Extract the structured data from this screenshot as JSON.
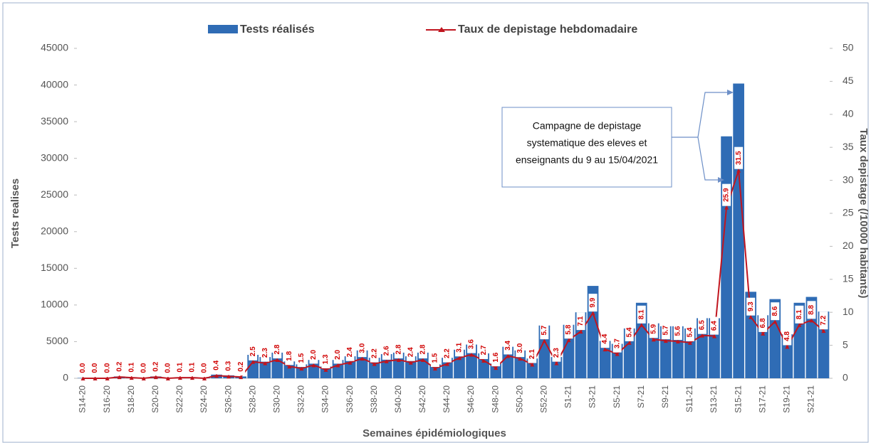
{
  "chart_data": {
    "type": "bar+line",
    "x_label": "Semaines épidémiologiques",
    "y_label": "Tests realises",
    "y2_label": "Taux depistage (/10000 habitants)",
    "annotation": [
      "Campagne de depistage",
      "systematique des eleves et",
      "enseignants du 9 au 15/04/2021"
    ],
    "categories": [
      "S14-20",
      null,
      "S16-20",
      null,
      "S18-20",
      null,
      "S20-20",
      null,
      "S22-20",
      null,
      "S24-20",
      null,
      "S26-20",
      null,
      "S28-20",
      null,
      "S30-20",
      null,
      "S32-20",
      null,
      "S34-20",
      null,
      "S36-20",
      null,
      "S38-20",
      null,
      "S40-20",
      null,
      "S42-20",
      null,
      "S44-20",
      null,
      "S46-20",
      null,
      "S48-20",
      null,
      "S50-20",
      null,
      "S52-20",
      null,
      "S1-21",
      null,
      "S3-21",
      null,
      "S5-21",
      null,
      "S7-21",
      null,
      "S9-21",
      null,
      "S11-21",
      null,
      "S13-21",
      null,
      "S15-21",
      null,
      "S17-21",
      null,
      "S19-21",
      null,
      "S21-21",
      null
    ],
    "series": [
      {
        "name": "Tests réalisés",
        "color": "#2f6cb5",
        "values": [
          50,
          50,
          60,
          250,
          150,
          60,
          250,
          60,
          150,
          150,
          60,
          500,
          400,
          250,
          3200,
          2900,
          3500,
          2300,
          1900,
          2500,
          1600,
          2500,
          3000,
          3800,
          2800,
          3300,
          3500,
          3000,
          3500,
          1900,
          2800,
          3900,
          4600,
          3400,
          2000,
          4300,
          3800,
          2700,
          7200,
          2900,
          7300,
          9000,
          12600,
          5100,
          4700,
          6800,
          10300,
          7500,
          7100,
          7100,
          6800,
          8200,
          8200,
          33000,
          40200,
          11800,
          8600,
          10800,
          6000,
          10300,
          11100,
          9100
        ]
      },
      {
        "name": "Taux de depistage hebdomadaire",
        "color": "#c0151f",
        "axis": "y2",
        "values": [
          0,
          0,
          0,
          0.2,
          0.1,
          0,
          0.2,
          0,
          0.1,
          0.1,
          0,
          0.4,
          0.3,
          0.2,
          2.5,
          2.3,
          2.8,
          1.8,
          1.5,
          2.0,
          1.3,
          2.0,
          2.4,
          3.0,
          2.2,
          2.6,
          2.8,
          2.4,
          2.8,
          1.5,
          2.2,
          3.1,
          3.6,
          2.7,
          1.6,
          3.4,
          3.0,
          2.1,
          5.7,
          2.3,
          5.8,
          7.1,
          9.9,
          4.4,
          3.7,
          5.4,
          8.1,
          5.9,
          5.7,
          5.6,
          5.4,
          6.5,
          6.4,
          25.9,
          31.5,
          9.3,
          6.8,
          8.6,
          4.8,
          8.1,
          8.8,
          7.2
        ],
        "value_labels": [
          "0.0",
          "0.0",
          "0.0",
          "0.2",
          "0.1",
          "0.0",
          "0.2",
          "0.0",
          "0.1",
          "0.1",
          "0.0",
          "0.4",
          "0.3",
          "0.2",
          "2.5",
          "2.3",
          "2.8",
          "1.8",
          "1.5",
          "2.0",
          "1.3",
          "2.0",
          "2.4",
          "3.0",
          "2.2",
          "2.6",
          "2.8",
          "2.4",
          "2.8",
          "1.5",
          "2.2",
          "3.1",
          "3.6",
          "2.7",
          "1.6",
          "3.4",
          "3.0",
          "2.1",
          "5.7",
          "2.3",
          "5.8",
          "7.1",
          "9.9",
          "4.4",
          "3.7",
          "5.4",
          "8.1",
          "5.9",
          "5.7",
          "5.6",
          "5.4",
          "6.5",
          "6.4",
          "25.9",
          "31.5",
          "9.3",
          "6.8",
          "8.6",
          "4.8",
          "8.1",
          "8.8",
          "7.2"
        ]
      }
    ],
    "ylim": [
      0,
      45000
    ],
    "yticks": [
      0,
      5000,
      10000,
      15000,
      20000,
      25000,
      30000,
      35000,
      40000,
      45000
    ],
    "y2lim": [
      0,
      50
    ],
    "y2ticks": [
      0,
      5,
      10,
      15,
      20,
      25,
      30,
      35,
      40,
      45,
      50
    ],
    "legend": "top"
  }
}
